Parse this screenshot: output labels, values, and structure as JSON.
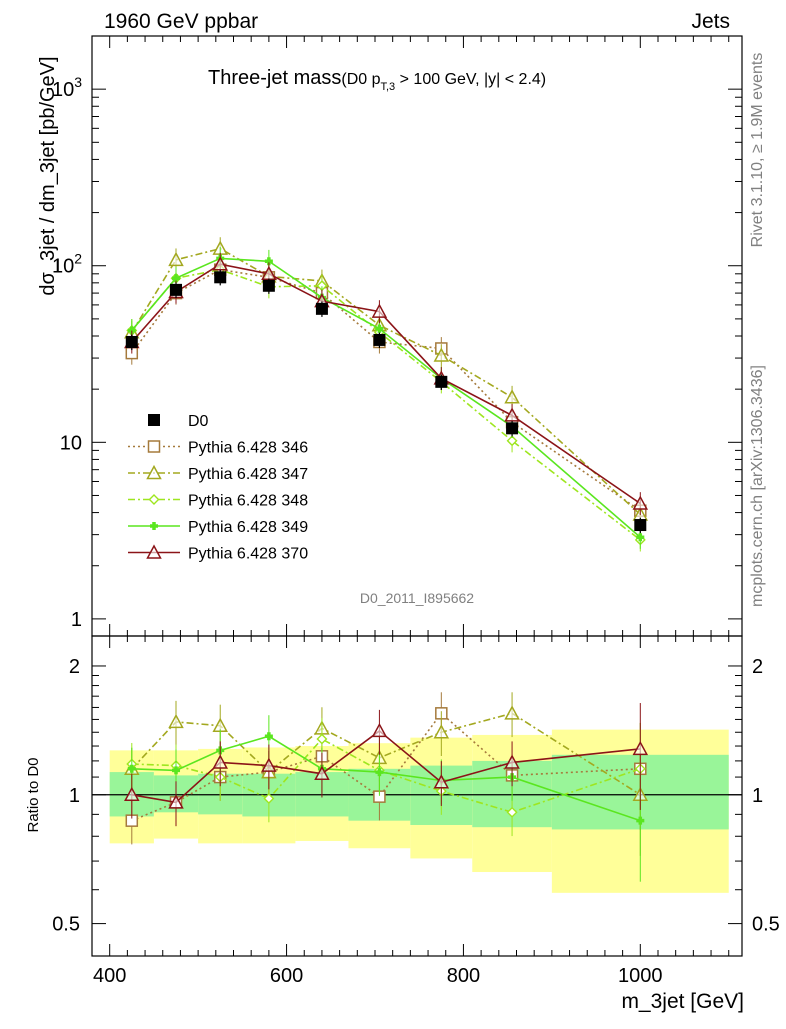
{
  "header": {
    "energy_label": "1960 GeV ppbar",
    "process_label": "Jets",
    "title_main": "Three-jet mass",
    "title_detail_a": "(D0 p",
    "title_detail_sub": "T,3",
    "title_detail_b": " > 100 GeV, |y| < 2.4)"
  },
  "side": {
    "rivet": "Rivet 3.1.10, ≥ 1.9M events",
    "mcplots": "mcplots.cern.ch [arXiv:1306.3436]"
  },
  "analysis_id": "D0_2011_I895662",
  "chart_data": [
    {
      "type": "line",
      "panel": "main",
      "ylabel": "dσ_3jet / dm_3jet [pb/GeV]",
      "yscale": "log",
      "ylim": [
        0.8,
        2000
      ],
      "xlim": [
        380,
        1115
      ],
      "y_tick_labels": [
        "1",
        "10",
        "10²",
        "10³"
      ],
      "legend_placement": "left",
      "x": [
        425,
        475,
        525,
        580,
        640,
        705,
        775,
        855,
        1000
      ],
      "series": [
        {
          "name": "D0",
          "color": "#000000",
          "marker": "square-filled",
          "line": "none",
          "values": [
            37,
            73,
            86,
            77,
            57,
            38,
            22,
            12,
            3.4
          ]
        },
        {
          "name": "Pythia 6.428 346",
          "color": "#a57a3c",
          "marker": "square-open",
          "line": "dotted",
          "values": [
            32,
            70,
            95,
            86,
            70,
            37,
            34,
            13,
            4.1
          ]
        },
        {
          "name": "Pythia 6.428 347",
          "color": "#a3a81f",
          "marker": "triangle-open",
          "line": "dashdot",
          "values": [
            42,
            108,
            125,
            87,
            82,
            46,
            31,
            18,
            3.9
          ]
        },
        {
          "name": "Pythia 6.428 348",
          "color": "#9ee61f",
          "marker": "diamond-open",
          "line": "dashdot",
          "values": [
            43,
            85,
            95,
            76,
            77,
            42,
            22,
            10.2,
            2.8
          ]
        },
        {
          "name": "Pythia 6.428 349",
          "color": "#5ae61f",
          "marker": "cross",
          "line": "solid",
          "values": [
            43,
            85,
            110,
            106,
            66,
            44,
            23,
            12.3,
            2.9
          ]
        },
        {
          "name": "Pythia 6.428 370",
          "color": "#8b1418",
          "marker": "triangle-open",
          "line": "solid",
          "values": [
            37,
            71,
            102,
            90,
            63,
            55,
            23,
            14.2,
            4.5
          ]
        }
      ]
    },
    {
      "type": "line",
      "panel": "ratio",
      "ylabel": "Ratio to D0",
      "xlabel": "m_3jet [GeV]",
      "yscale": "log",
      "ylim": [
        0.42,
        2.35
      ],
      "xlim": [
        380,
        1115
      ],
      "x_tick_labels": [
        "400",
        "600",
        "800",
        "1000"
      ],
      "y_tick_labels": [
        "0.5",
        "1",
        "2"
      ],
      "bins": [
        [
          400,
          450
        ],
        [
          450,
          500
        ],
        [
          500,
          550
        ],
        [
          550,
          610
        ],
        [
          610,
          670
        ],
        [
          670,
          740
        ],
        [
          740,
          810
        ],
        [
          810,
          900
        ],
        [
          900,
          1100
        ]
      ],
      "band_stat": [
        [
          0.89,
          1.13
        ],
        [
          0.91,
          1.11
        ],
        [
          0.9,
          1.12
        ],
        [
          0.89,
          1.12
        ],
        [
          0.89,
          1.13
        ],
        [
          0.87,
          1.15
        ],
        [
          0.85,
          1.17
        ],
        [
          0.84,
          1.2
        ],
        [
          0.83,
          1.24
        ]
      ],
      "band_total": [
        [
          0.77,
          1.27
        ],
        [
          0.79,
          1.27
        ],
        [
          0.77,
          1.28
        ],
        [
          0.77,
          1.29
        ],
        [
          0.78,
          1.3
        ],
        [
          0.75,
          1.32
        ],
        [
          0.71,
          1.36
        ],
        [
          0.66,
          1.38
        ],
        [
          0.59,
          1.42
        ]
      ],
      "x": [
        425,
        475,
        525,
        580,
        640,
        705,
        775,
        855,
        1000
      ],
      "series": [
        {
          "name": "Pythia 6.428 346",
          "color": "#a57a3c",
          "marker": "square-open",
          "line": "dotted",
          "values": [
            0.87,
            0.96,
            1.1,
            1.13,
            1.23,
            0.99,
            1.55,
            1.11,
            1.15
          ]
        },
        {
          "name": "Pythia 6.428 347",
          "color": "#a3a81f",
          "marker": "triangle-open",
          "line": "dashdot",
          "values": [
            1.15,
            1.48,
            1.45,
            1.13,
            1.43,
            1.22,
            1.4,
            1.55,
            1.0
          ]
        },
        {
          "name": "Pythia 6.428 348",
          "color": "#9ee61f",
          "marker": "diamond-open",
          "line": "dashdot",
          "values": [
            1.18,
            1.17,
            1.1,
            0.98,
            1.35,
            1.14,
            1.02,
            0.91,
            1.15
          ]
        },
        {
          "name": "Pythia 6.428 349",
          "color": "#5ae61f",
          "marker": "cross",
          "line": "solid",
          "values": [
            1.15,
            1.14,
            1.27,
            1.37,
            1.15,
            1.13,
            1.08,
            1.1,
            0.87
          ]
        },
        {
          "name": "Pythia 6.428 370",
          "color": "#8b1418",
          "marker": "triangle-open",
          "line": "solid",
          "values": [
            1.0,
            0.96,
            1.19,
            1.17,
            1.12,
            1.41,
            1.07,
            1.19,
            1.28
          ]
        }
      ]
    }
  ]
}
